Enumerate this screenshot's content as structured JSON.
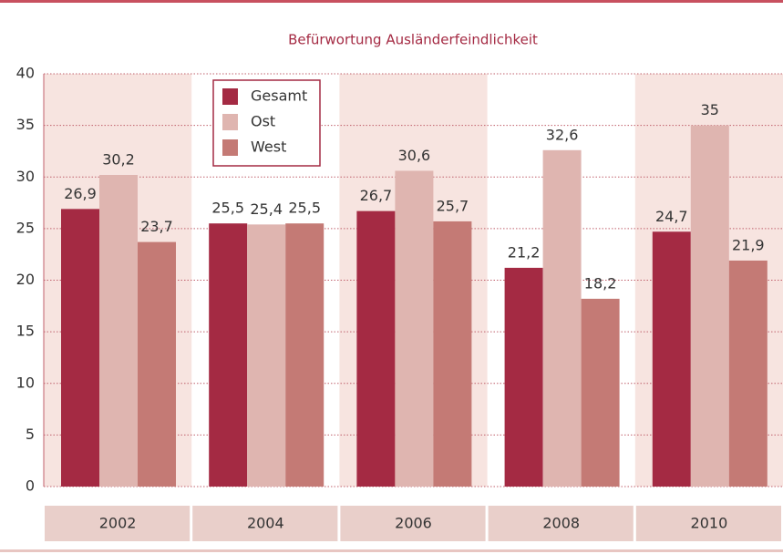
{
  "chart_data": {
    "type": "bar",
    "title": "Befürwortung Ausländerfeindlichkeit",
    "categories": [
      "2002",
      "2004",
      "2006",
      "2008",
      "2010"
    ],
    "series": [
      {
        "name": "Gesamt",
        "color": "#a42a43",
        "values": [
          26.9,
          25.5,
          26.7,
          21.2,
          24.7
        ],
        "value_labels": [
          "26,9",
          "25,5",
          "26,7",
          "21,2",
          "24,7"
        ]
      },
      {
        "name": "Ost",
        "color": "#dfb5b0",
        "values": [
          30.2,
          25.4,
          30.6,
          32.6,
          35
        ],
        "value_labels": [
          "30,2",
          "25,4",
          "30,6",
          "32,6",
          "35"
        ]
      },
      {
        "name": "West",
        "color": "#c47a75",
        "values": [
          23.7,
          25.5,
          25.7,
          18.2,
          21.9
        ],
        "value_labels": [
          "23,7",
          "25,5",
          "25,7",
          "18,2",
          "21,9"
        ]
      }
    ],
    "ylim": [
      0,
      40
    ],
    "yticks": [
      0,
      5,
      10,
      15,
      20,
      25,
      30,
      35,
      40
    ],
    "grid": true,
    "legend": "top-left"
  }
}
